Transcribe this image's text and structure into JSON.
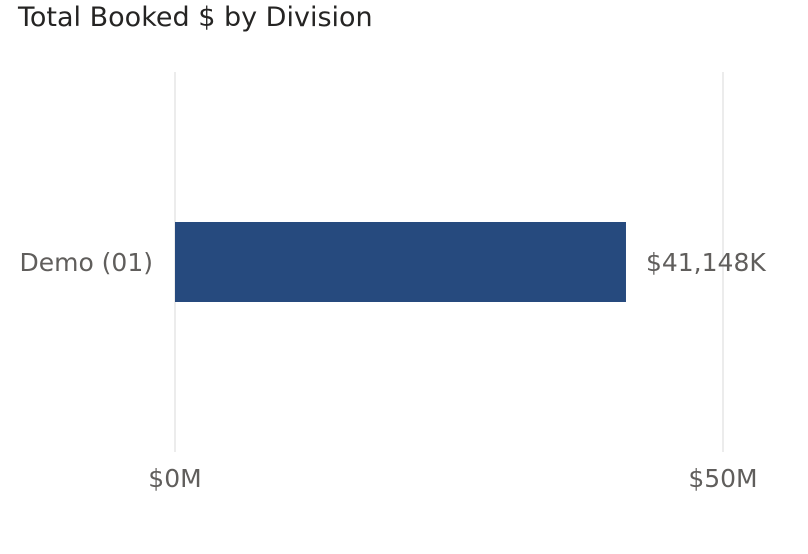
{
  "chart_data": {
    "type": "bar",
    "orientation": "horizontal",
    "title": "Total Booked $ by Division",
    "categories": [
      "Demo (01)"
    ],
    "values": [
      41148
    ],
    "value_unit": "thousand USD",
    "data_labels": [
      "$41,148K"
    ],
    "xlabel": "",
    "ylabel": "",
    "xlim": [
      0,
      50000
    ],
    "x_ticks": [
      {
        "value": 0,
        "label": "$0M"
      },
      {
        "value": 50000,
        "label": "$50M"
      }
    ],
    "grid": true,
    "legend": "none",
    "colors": {
      "bar": "#264a7e",
      "gridline": "#ececec",
      "label_text": "#605e5c",
      "title_text": "#252423"
    }
  }
}
